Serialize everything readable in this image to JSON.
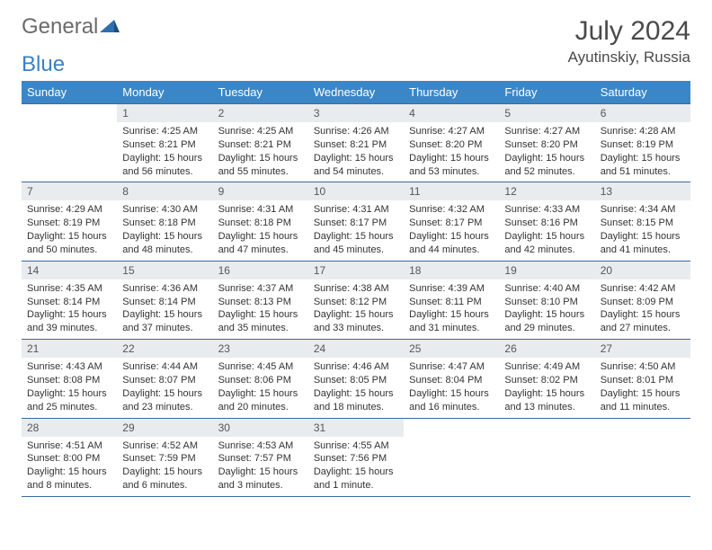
{
  "branding": {
    "word1": "General",
    "word2": "Blue",
    "triangle_color": "#2f6fb0"
  },
  "title": {
    "month_year": "July 2024",
    "location": "Ayutinskiy, Russia"
  },
  "colors": {
    "header_bg": "#3b86c7",
    "header_text": "#ffffff",
    "daynum_bg": "#e9ecef",
    "rule": "#3b6a99",
    "text": "#333333"
  },
  "weekdays": [
    "Sunday",
    "Monday",
    "Tuesday",
    "Wednesday",
    "Thursday",
    "Friday",
    "Saturday"
  ],
  "weeks": [
    [
      {
        "n": "",
        "sr": "",
        "ss": "",
        "d1": "",
        "d2": ""
      },
      {
        "n": "1",
        "sr": "Sunrise: 4:25 AM",
        "ss": "Sunset: 8:21 PM",
        "d1": "Daylight: 15 hours",
        "d2": "and 56 minutes."
      },
      {
        "n": "2",
        "sr": "Sunrise: 4:25 AM",
        "ss": "Sunset: 8:21 PM",
        "d1": "Daylight: 15 hours",
        "d2": "and 55 minutes."
      },
      {
        "n": "3",
        "sr": "Sunrise: 4:26 AM",
        "ss": "Sunset: 8:21 PM",
        "d1": "Daylight: 15 hours",
        "d2": "and 54 minutes."
      },
      {
        "n": "4",
        "sr": "Sunrise: 4:27 AM",
        "ss": "Sunset: 8:20 PM",
        "d1": "Daylight: 15 hours",
        "d2": "and 53 minutes."
      },
      {
        "n": "5",
        "sr": "Sunrise: 4:27 AM",
        "ss": "Sunset: 8:20 PM",
        "d1": "Daylight: 15 hours",
        "d2": "and 52 minutes."
      },
      {
        "n": "6",
        "sr": "Sunrise: 4:28 AM",
        "ss": "Sunset: 8:19 PM",
        "d1": "Daylight: 15 hours",
        "d2": "and 51 minutes."
      }
    ],
    [
      {
        "n": "7",
        "sr": "Sunrise: 4:29 AM",
        "ss": "Sunset: 8:19 PM",
        "d1": "Daylight: 15 hours",
        "d2": "and 50 minutes."
      },
      {
        "n": "8",
        "sr": "Sunrise: 4:30 AM",
        "ss": "Sunset: 8:18 PM",
        "d1": "Daylight: 15 hours",
        "d2": "and 48 minutes."
      },
      {
        "n": "9",
        "sr": "Sunrise: 4:31 AM",
        "ss": "Sunset: 8:18 PM",
        "d1": "Daylight: 15 hours",
        "d2": "and 47 minutes."
      },
      {
        "n": "10",
        "sr": "Sunrise: 4:31 AM",
        "ss": "Sunset: 8:17 PM",
        "d1": "Daylight: 15 hours",
        "d2": "and 45 minutes."
      },
      {
        "n": "11",
        "sr": "Sunrise: 4:32 AM",
        "ss": "Sunset: 8:17 PM",
        "d1": "Daylight: 15 hours",
        "d2": "and 44 minutes."
      },
      {
        "n": "12",
        "sr": "Sunrise: 4:33 AM",
        "ss": "Sunset: 8:16 PM",
        "d1": "Daylight: 15 hours",
        "d2": "and 42 minutes."
      },
      {
        "n": "13",
        "sr": "Sunrise: 4:34 AM",
        "ss": "Sunset: 8:15 PM",
        "d1": "Daylight: 15 hours",
        "d2": "and 41 minutes."
      }
    ],
    [
      {
        "n": "14",
        "sr": "Sunrise: 4:35 AM",
        "ss": "Sunset: 8:14 PM",
        "d1": "Daylight: 15 hours",
        "d2": "and 39 minutes."
      },
      {
        "n": "15",
        "sr": "Sunrise: 4:36 AM",
        "ss": "Sunset: 8:14 PM",
        "d1": "Daylight: 15 hours",
        "d2": "and 37 minutes."
      },
      {
        "n": "16",
        "sr": "Sunrise: 4:37 AM",
        "ss": "Sunset: 8:13 PM",
        "d1": "Daylight: 15 hours",
        "d2": "and 35 minutes."
      },
      {
        "n": "17",
        "sr": "Sunrise: 4:38 AM",
        "ss": "Sunset: 8:12 PM",
        "d1": "Daylight: 15 hours",
        "d2": "and 33 minutes."
      },
      {
        "n": "18",
        "sr": "Sunrise: 4:39 AM",
        "ss": "Sunset: 8:11 PM",
        "d1": "Daylight: 15 hours",
        "d2": "and 31 minutes."
      },
      {
        "n": "19",
        "sr": "Sunrise: 4:40 AM",
        "ss": "Sunset: 8:10 PM",
        "d1": "Daylight: 15 hours",
        "d2": "and 29 minutes."
      },
      {
        "n": "20",
        "sr": "Sunrise: 4:42 AM",
        "ss": "Sunset: 8:09 PM",
        "d1": "Daylight: 15 hours",
        "d2": "and 27 minutes."
      }
    ],
    [
      {
        "n": "21",
        "sr": "Sunrise: 4:43 AM",
        "ss": "Sunset: 8:08 PM",
        "d1": "Daylight: 15 hours",
        "d2": "and 25 minutes."
      },
      {
        "n": "22",
        "sr": "Sunrise: 4:44 AM",
        "ss": "Sunset: 8:07 PM",
        "d1": "Daylight: 15 hours",
        "d2": "and 23 minutes."
      },
      {
        "n": "23",
        "sr": "Sunrise: 4:45 AM",
        "ss": "Sunset: 8:06 PM",
        "d1": "Daylight: 15 hours",
        "d2": "and 20 minutes."
      },
      {
        "n": "24",
        "sr": "Sunrise: 4:46 AM",
        "ss": "Sunset: 8:05 PM",
        "d1": "Daylight: 15 hours",
        "d2": "and 18 minutes."
      },
      {
        "n": "25",
        "sr": "Sunrise: 4:47 AM",
        "ss": "Sunset: 8:04 PM",
        "d1": "Daylight: 15 hours",
        "d2": "and 16 minutes."
      },
      {
        "n": "26",
        "sr": "Sunrise: 4:49 AM",
        "ss": "Sunset: 8:02 PM",
        "d1": "Daylight: 15 hours",
        "d2": "and 13 minutes."
      },
      {
        "n": "27",
        "sr": "Sunrise: 4:50 AM",
        "ss": "Sunset: 8:01 PM",
        "d1": "Daylight: 15 hours",
        "d2": "and 11 minutes."
      }
    ],
    [
      {
        "n": "28",
        "sr": "Sunrise: 4:51 AM",
        "ss": "Sunset: 8:00 PM",
        "d1": "Daylight: 15 hours",
        "d2": "and 8 minutes."
      },
      {
        "n": "29",
        "sr": "Sunrise: 4:52 AM",
        "ss": "Sunset: 7:59 PM",
        "d1": "Daylight: 15 hours",
        "d2": "and 6 minutes."
      },
      {
        "n": "30",
        "sr": "Sunrise: 4:53 AM",
        "ss": "Sunset: 7:57 PM",
        "d1": "Daylight: 15 hours",
        "d2": "and 3 minutes."
      },
      {
        "n": "31",
        "sr": "Sunrise: 4:55 AM",
        "ss": "Sunset: 7:56 PM",
        "d1": "Daylight: 15 hours",
        "d2": "and 1 minute."
      },
      {
        "n": "",
        "sr": "",
        "ss": "",
        "d1": "",
        "d2": ""
      },
      {
        "n": "",
        "sr": "",
        "ss": "",
        "d1": "",
        "d2": ""
      },
      {
        "n": "",
        "sr": "",
        "ss": "",
        "d1": "",
        "d2": ""
      }
    ]
  ]
}
